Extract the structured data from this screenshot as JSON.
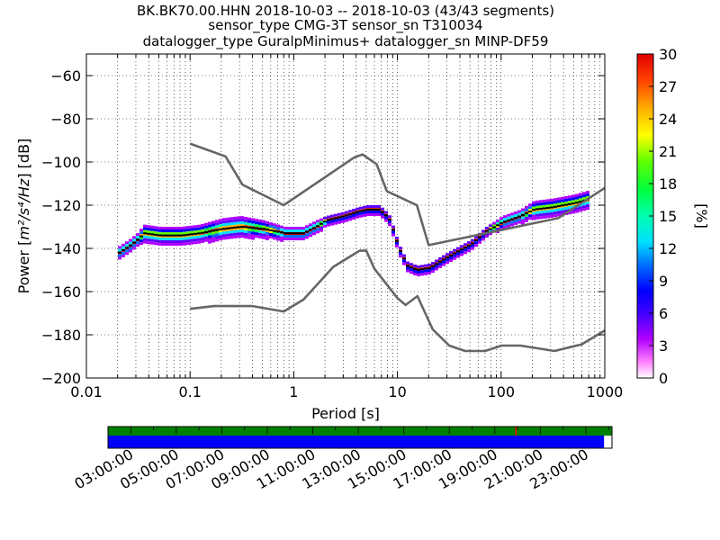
{
  "chart_data": {
    "type": "heatmap",
    "title_lines": [
      "BK.BK70.00.HHN   2018-10-03 -- 2018-10-03  (43/43 segments)",
      "sensor_type CMG-3T sensor_sn T310034",
      "datalogger_type GuralpMinimus+ datalogger_sn MINP-DF59"
    ],
    "xlabel": "Period [s]",
    "ylabel_prefix": "Power [",
    "ylabel_unit": "m²/s⁴/Hz",
    "ylabel_suffix": "] [dB]",
    "x_scale": "log",
    "xlim": [
      0.01,
      1000
    ],
    "ylim": [
      -200,
      -50
    ],
    "x_ticks": [
      0.01,
      0.1,
      1,
      10,
      100,
      1000
    ],
    "x_tick_labels": [
      "0.01",
      "0.1",
      "1",
      "10",
      "100",
      "1000"
    ],
    "y_ticks": [
      -200,
      -180,
      -160,
      -140,
      -120,
      -100,
      -80,
      -60
    ],
    "y_tick_labels": [
      "−200",
      "−180",
      "−160",
      "−140",
      "−120",
      "−100",
      "−80",
      "−60"
    ],
    "grid": "dotted",
    "colorbar": {
      "label": "[%]",
      "range": [
        0,
        30
      ],
      "ticks": [
        0,
        3,
        6,
        9,
        12,
        15,
        18,
        21,
        24,
        27,
        30
      ],
      "tick_labels": [
        "0",
        "3",
        "6",
        "9",
        "12",
        "15",
        "18",
        "21",
        "24",
        "27",
        "30"
      ]
    },
    "noise_model_high": {
      "period": [
        0.1,
        0.22,
        0.32,
        0.8,
        3.8,
        4.6,
        6.3,
        7.9,
        15.4,
        20,
        354.8,
        1000
      ],
      "db": [
        -91.5,
        -97.4,
        -110.5,
        -120,
        -98,
        -96.5,
        -101,
        -113.5,
        -120,
        -138.5,
        -126,
        -112
      ]
    },
    "noise_model_low": {
      "period": [
        0.1,
        0.17,
        0.4,
        0.8,
        1.24,
        2.4,
        4.3,
        5,
        6,
        10,
        12,
        15.6,
        21.9,
        31.6,
        45,
        70,
        101,
        154,
        328,
        600,
        1000
      ],
      "db": [
        -168,
        -166.7,
        -166.7,
        -169.2,
        -163.7,
        -148.6,
        -141.1,
        -141,
        -149.4,
        -163,
        -166.2,
        -162.1,
        -177.5,
        -185,
        -187.5,
        -187.5,
        -185,
        -185,
        -187.5,
        -184.4,
        -178
      ]
    },
    "psd_median": {
      "period": [
        0.02,
        0.025,
        0.03,
        0.035,
        0.05,
        0.08,
        0.12,
        0.2,
        0.3,
        0.5,
        0.8,
        1.2,
        1.6,
        2,
        3,
        4,
        5,
        6.5,
        8,
        9,
        10,
        12,
        15,
        20,
        25,
        35,
        50,
        70,
        100,
        150,
        200,
        300,
        500,
        700
      ],
      "db": [
        -142,
        -139,
        -136,
        -133,
        -134,
        -134,
        -133,
        -131,
        -130,
        -131,
        -133,
        -133,
        -130,
        -127,
        -125,
        -123,
        -122,
        -122,
        -126,
        -133,
        -140,
        -148,
        -150,
        -149,
        -146,
        -142,
        -138,
        -132,
        -128,
        -125,
        -122,
        -121,
        -119,
        -117
      ]
    },
    "psd_spread_db": [
      3,
      3,
      3,
      4,
      4,
      4,
      4,
      5,
      5,
      4,
      3,
      3,
      3,
      2,
      2,
      2,
      2,
      2,
      2,
      2,
      2,
      2,
      2,
      2,
      2,
      2,
      2,
      2,
      3,
      3,
      4,
      4,
      4,
      4
    ],
    "time_axis": {
      "tick_labels": [
        "03:00:00",
        "05:00:00",
        "07:00:00",
        "09:00:00",
        "11:00:00",
        "13:00:00",
        "15:00:00",
        "17:00:00",
        "19:00:00",
        "21:00:00",
        "23:00:00"
      ],
      "start_hour": 2,
      "end_hour": 24.15,
      "data_end_hour": 23.8,
      "data_color": "#0000ff",
      "availability_color": "#008000",
      "gap_marker_hour": 19.9,
      "gap_marker_color": "#ff0000"
    }
  }
}
